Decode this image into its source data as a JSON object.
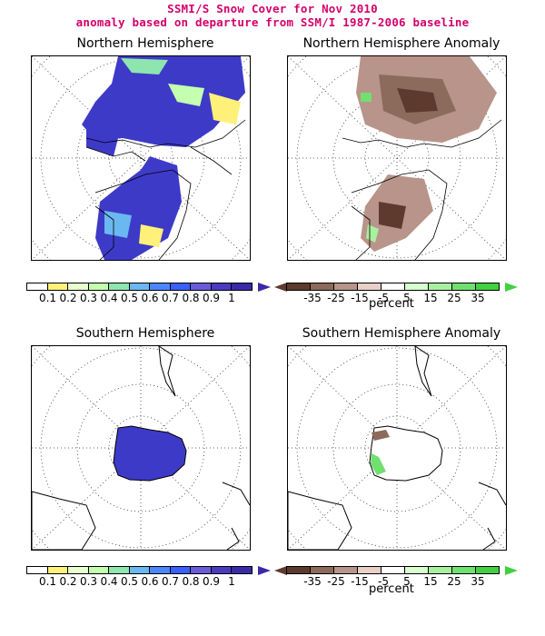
{
  "header": {
    "title_line1": "SSMI/S Snow Cover for Nov 2010",
    "title_line2": "anomaly based on departure from SSM/I 1987-2006 baseline"
  },
  "panels": {
    "nh_cover": "Northern Hemisphere",
    "nh_anomaly": "Northern Hemisphere Anomaly",
    "sh_cover": "Southern Hemisphere",
    "sh_anomaly": "Southern Hemisphere Anomaly"
  },
  "cover_colorbar": {
    "labels": [
      "0.1",
      "0.2",
      "0.3",
      "0.4",
      "0.5",
      "0.6",
      "0.7",
      "0.8",
      "0.9",
      "1"
    ],
    "colors": [
      "#ffffff",
      "#fff07a",
      "#e8ffd0",
      "#c4ffb0",
      "#8ee6ae",
      "#6ab8f0",
      "#4a86ff",
      "#3a60ff",
      "#6a5cd8",
      "#4a3ac0",
      "#3a2aa8"
    ]
  },
  "anomaly_colorbar": {
    "labels": [
      "-35",
      "-25",
      "-15",
      "-5",
      "5",
      "15",
      "25",
      "35"
    ],
    "colors": [
      "#5e3a2e",
      "#8c6a5c",
      "#b8948a",
      "#e8cfc8",
      "#ffffff",
      "#d8ffd0",
      "#a8f0a0",
      "#70e070",
      "#40d040"
    ],
    "units": "percent"
  }
}
